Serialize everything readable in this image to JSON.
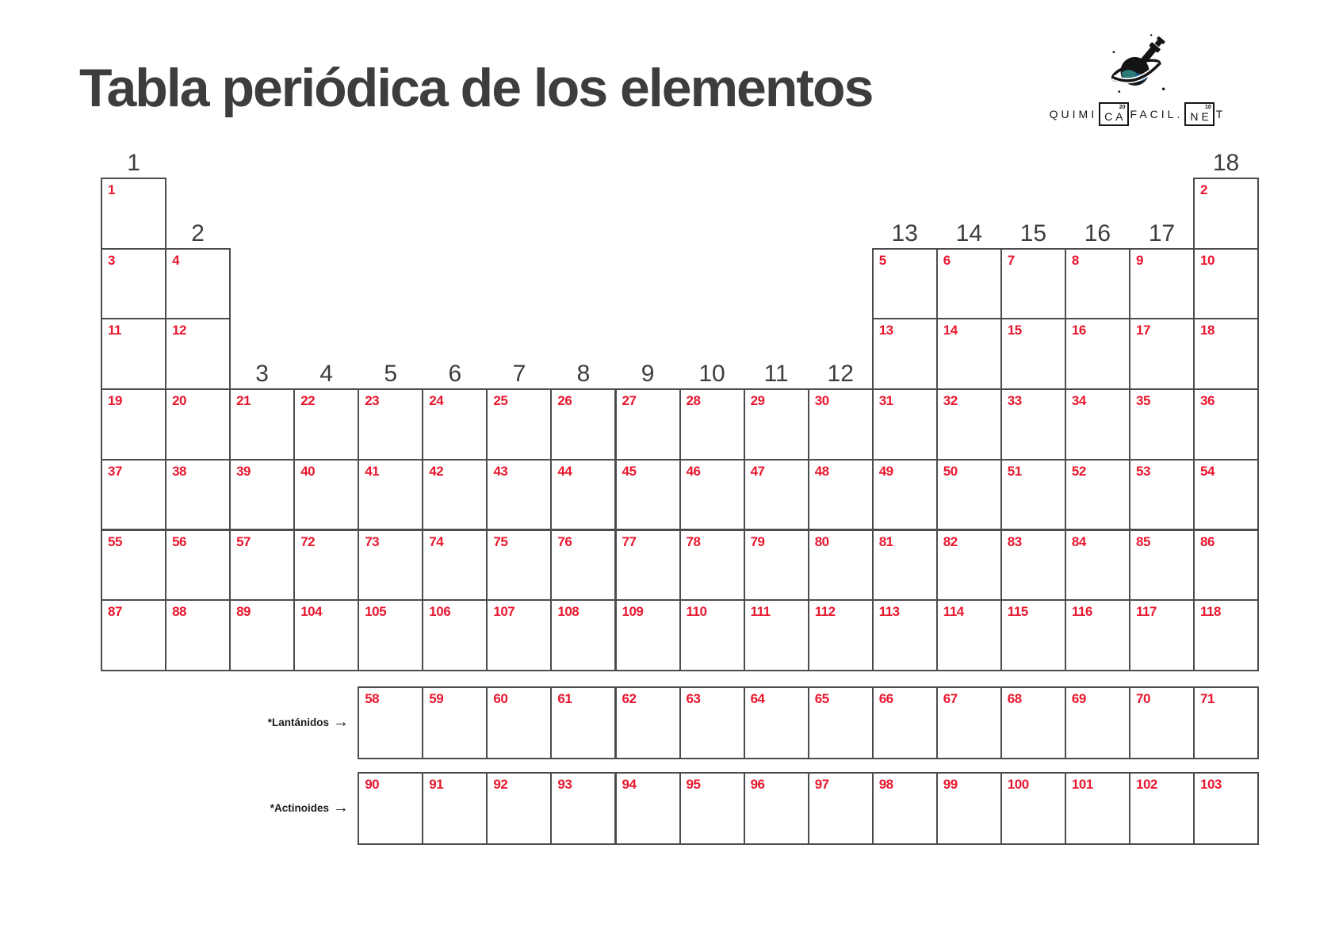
{
  "title": "Tabla periódica de los elementos",
  "logo": {
    "part1": "QUIMI",
    "element1": {
      "symbol": "CA",
      "number": "20"
    },
    "part2": "FACIL.",
    "element2": {
      "symbol": "NE",
      "number": "10"
    },
    "part3": "T"
  },
  "colors": {
    "number_red": "#e8182f",
    "grid_gray": "#4c4c4e",
    "ink_dark": "#3d3d40",
    "logo_black": "#141414",
    "flask_teal": "#2b7a77",
    "flask_blue": "#1e5c94"
  },
  "group_labels": [
    [
      "1",
      1,
      1
    ],
    [
      "2",
      2,
      2
    ],
    [
      "3",
      3,
      4
    ],
    [
      "4",
      4,
      4
    ],
    [
      "5",
      5,
      4
    ],
    [
      "6",
      6,
      4
    ],
    [
      "7",
      7,
      4
    ],
    [
      "8",
      8,
      4
    ],
    [
      "9",
      9,
      4
    ],
    [
      "10",
      10,
      4
    ],
    [
      "11",
      11,
      4
    ],
    [
      "12",
      12,
      4
    ],
    [
      "13",
      13,
      2
    ],
    [
      "14",
      14,
      2
    ],
    [
      "15",
      15,
      2
    ],
    [
      "16",
      16,
      2
    ],
    [
      "17",
      17,
      2
    ],
    [
      "18",
      18,
      1
    ]
  ],
  "main_cells": [
    [
      1,
      1,
      "1"
    ],
    [
      1,
      18,
      "2"
    ],
    [
      2,
      1,
      "3"
    ],
    [
      2,
      2,
      "4"
    ],
    [
      2,
      13,
      "5"
    ],
    [
      2,
      14,
      "6"
    ],
    [
      2,
      15,
      "7"
    ],
    [
      2,
      16,
      "8"
    ],
    [
      2,
      17,
      "9"
    ],
    [
      2,
      18,
      "10"
    ],
    [
      3,
      1,
      "11"
    ],
    [
      3,
      2,
      "12"
    ],
    [
      3,
      13,
      "13"
    ],
    [
      3,
      14,
      "14"
    ],
    [
      3,
      15,
      "15"
    ],
    [
      3,
      16,
      "16"
    ],
    [
      3,
      17,
      "17"
    ],
    [
      3,
      18,
      "18"
    ],
    [
      4,
      1,
      "19"
    ],
    [
      4,
      2,
      "20"
    ],
    [
      4,
      3,
      "21"
    ],
    [
      4,
      4,
      "22"
    ],
    [
      4,
      5,
      "23"
    ],
    [
      4,
      6,
      "24"
    ],
    [
      4,
      7,
      "25"
    ],
    [
      4,
      8,
      "26"
    ],
    [
      4,
      9,
      "27"
    ],
    [
      4,
      10,
      "28"
    ],
    [
      4,
      11,
      "29"
    ],
    [
      4,
      12,
      "30"
    ],
    [
      4,
      13,
      "31"
    ],
    [
      4,
      14,
      "32"
    ],
    [
      4,
      15,
      "33"
    ],
    [
      4,
      16,
      "34"
    ],
    [
      4,
      17,
      "35"
    ],
    [
      4,
      18,
      "36"
    ],
    [
      5,
      1,
      "37"
    ],
    [
      5,
      2,
      "38"
    ],
    [
      5,
      3,
      "39"
    ],
    [
      5,
      4,
      "40"
    ],
    [
      5,
      5,
      "41"
    ],
    [
      5,
      6,
      "42"
    ],
    [
      5,
      7,
      "43"
    ],
    [
      5,
      8,
      "44"
    ],
    [
      5,
      9,
      "45"
    ],
    [
      5,
      10,
      "46"
    ],
    [
      5,
      11,
      "47"
    ],
    [
      5,
      12,
      "48"
    ],
    [
      5,
      13,
      "49"
    ],
    [
      5,
      14,
      "50"
    ],
    [
      5,
      15,
      "51"
    ],
    [
      5,
      16,
      "52"
    ],
    [
      5,
      17,
      "53"
    ],
    [
      5,
      18,
      "54"
    ],
    [
      6,
      1,
      "55"
    ],
    [
      6,
      2,
      "56"
    ],
    [
      6,
      3,
      "57"
    ],
    [
      6,
      4,
      "72"
    ],
    [
      6,
      5,
      "73"
    ],
    [
      6,
      6,
      "74"
    ],
    [
      6,
      7,
      "75"
    ],
    [
      6,
      8,
      "76"
    ],
    [
      6,
      9,
      "77"
    ],
    [
      6,
      10,
      "78"
    ],
    [
      6,
      11,
      "79"
    ],
    [
      6,
      12,
      "80"
    ],
    [
      6,
      13,
      "81"
    ],
    [
      6,
      14,
      "82"
    ],
    [
      6,
      15,
      "83"
    ],
    [
      6,
      16,
      "84"
    ],
    [
      6,
      17,
      "85"
    ],
    [
      6,
      18,
      "86"
    ],
    [
      7,
      1,
      "87"
    ],
    [
      7,
      2,
      "88"
    ],
    [
      7,
      3,
      "89"
    ],
    [
      7,
      4,
      "104"
    ],
    [
      7,
      5,
      "105"
    ],
    [
      7,
      6,
      "106"
    ],
    [
      7,
      7,
      "107"
    ],
    [
      7,
      8,
      "108"
    ],
    [
      7,
      9,
      "109"
    ],
    [
      7,
      10,
      "110"
    ],
    [
      7,
      11,
      "111"
    ],
    [
      7,
      12,
      "112"
    ],
    [
      7,
      13,
      "113"
    ],
    [
      7,
      14,
      "114"
    ],
    [
      7,
      15,
      "115"
    ],
    [
      7,
      16,
      "116"
    ],
    [
      7,
      17,
      "117"
    ],
    [
      7,
      18,
      "118"
    ]
  ],
  "lanthanides": {
    "label": "*Lantánidos",
    "arrow": "→",
    "numbers": [
      "58",
      "59",
      "60",
      "61",
      "62",
      "63",
      "64",
      "65",
      "66",
      "67",
      "68",
      "69",
      "70",
      "71"
    ]
  },
  "actinides": {
    "label": "*Actinoides",
    "arrow": "→",
    "numbers": [
      "90",
      "91",
      "92",
      "93",
      "94",
      "95",
      "96",
      "97",
      "98",
      "99",
      "100",
      "101",
      "102",
      "103"
    ]
  }
}
